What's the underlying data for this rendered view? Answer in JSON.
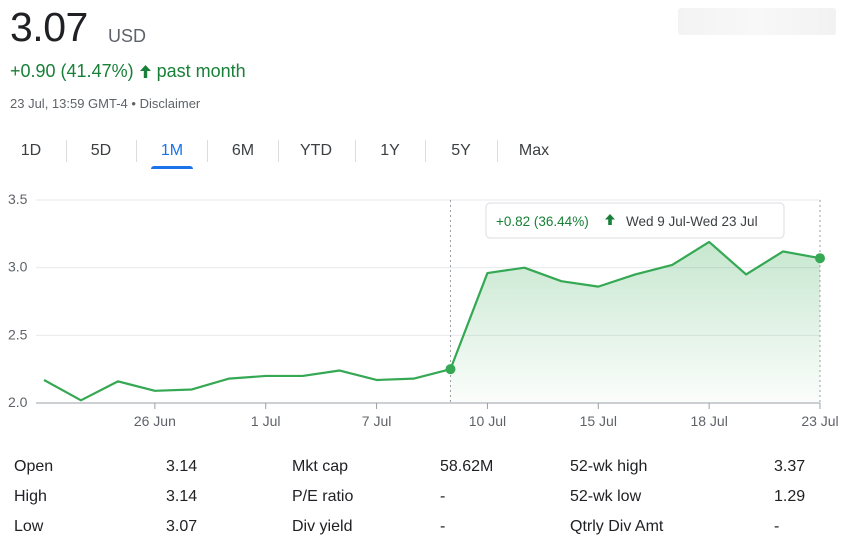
{
  "quote": {
    "price": "3.07",
    "currency": "USD",
    "change_text": "+0.90 (41.47%)",
    "change_period": "past month",
    "timestamp": "23 Jul, 13:59 GMT-4 •",
    "disclaimer": "Disclaimer"
  },
  "tabs": [
    {
      "label": "1D",
      "active": false
    },
    {
      "label": "5D",
      "active": false
    },
    {
      "label": "1M",
      "active": true
    },
    {
      "label": "6M",
      "active": false
    },
    {
      "label": "YTD",
      "active": false
    },
    {
      "label": "1Y",
      "active": false
    },
    {
      "label": "5Y",
      "active": false
    },
    {
      "label": "Max",
      "active": false
    }
  ],
  "tooltip": {
    "change": "+0.82 (36.44%)",
    "range": "Wed 9 Jul-Wed 23 Jul"
  },
  "colors": {
    "positive": "#188038",
    "line": "#34a853",
    "accent": "#1a73e8"
  },
  "chart_data": {
    "type": "area",
    "y_tick_labels": [
      "3.5",
      "3.0",
      "2.5",
      "2.0"
    ],
    "y_ticks": [
      3.5,
      3.0,
      2.5,
      2.0
    ],
    "ylim": [
      2.0,
      3.5
    ],
    "x_tick_labels": [
      "26 Jun",
      "1 Jul",
      "7 Jul",
      "10 Jul",
      "15 Jul",
      "18 Jul",
      "23 Jul"
    ],
    "x_tick_index": [
      3,
      6,
      9,
      12,
      15,
      18,
      21
    ],
    "highlight_start_index": 11,
    "highlight_end_index": 21,
    "values": [
      2.17,
      2.02,
      2.16,
      2.09,
      2.1,
      2.18,
      2.2,
      2.2,
      2.24,
      2.17,
      2.18,
      2.25,
      2.96,
      3.0,
      2.9,
      2.86,
      2.95,
      3.02,
      3.19,
      2.95,
      3.12,
      3.07
    ]
  },
  "stats": [
    [
      {
        "label": "Open",
        "value": "3.14"
      },
      {
        "label": "Mkt cap",
        "value": "58.62M"
      },
      {
        "label": "52-wk high",
        "value": "3.37"
      }
    ],
    [
      {
        "label": "High",
        "value": "3.14"
      },
      {
        "label": "P/E ratio",
        "value": "-"
      },
      {
        "label": "52-wk low",
        "value": "1.29"
      }
    ],
    [
      {
        "label": "Low",
        "value": "3.07"
      },
      {
        "label": "Div yield",
        "value": "-"
      },
      {
        "label": "Qtrly Div Amt",
        "value": "-"
      }
    ]
  ]
}
